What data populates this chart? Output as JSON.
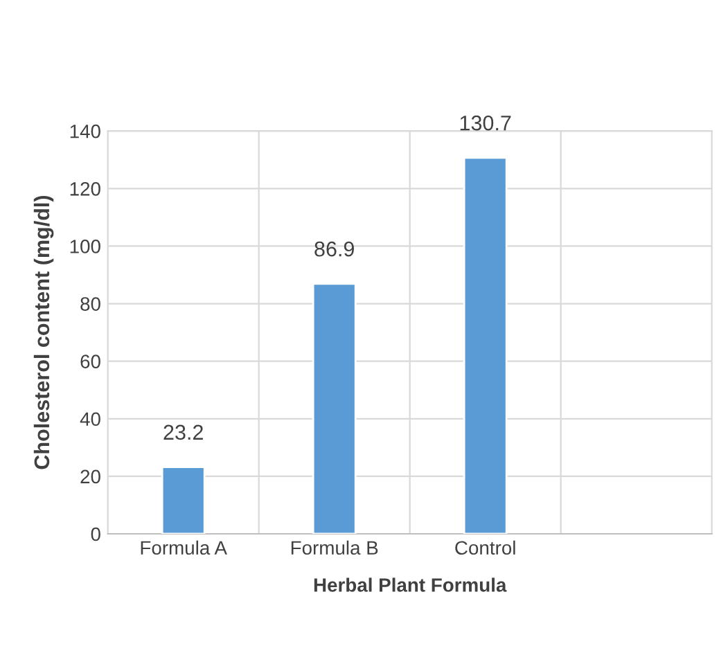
{
  "chart_data": {
    "type": "bar",
    "xlabel": "Herbal Plant Formula",
    "ylabel": "Cholesterol content (mg/dl)",
    "categories": [
      "Formula A",
      "Formula B",
      "Control",
      null
    ],
    "values": [
      23.2,
      86.9,
      130.7,
      null
    ],
    "color": "#5b9bd5",
    "ylim": [
      0,
      140
    ],
    "yticks": [
      0,
      20,
      40,
      60,
      80,
      100,
      120,
      140
    ],
    "grid": true,
    "data_labels": true
  }
}
